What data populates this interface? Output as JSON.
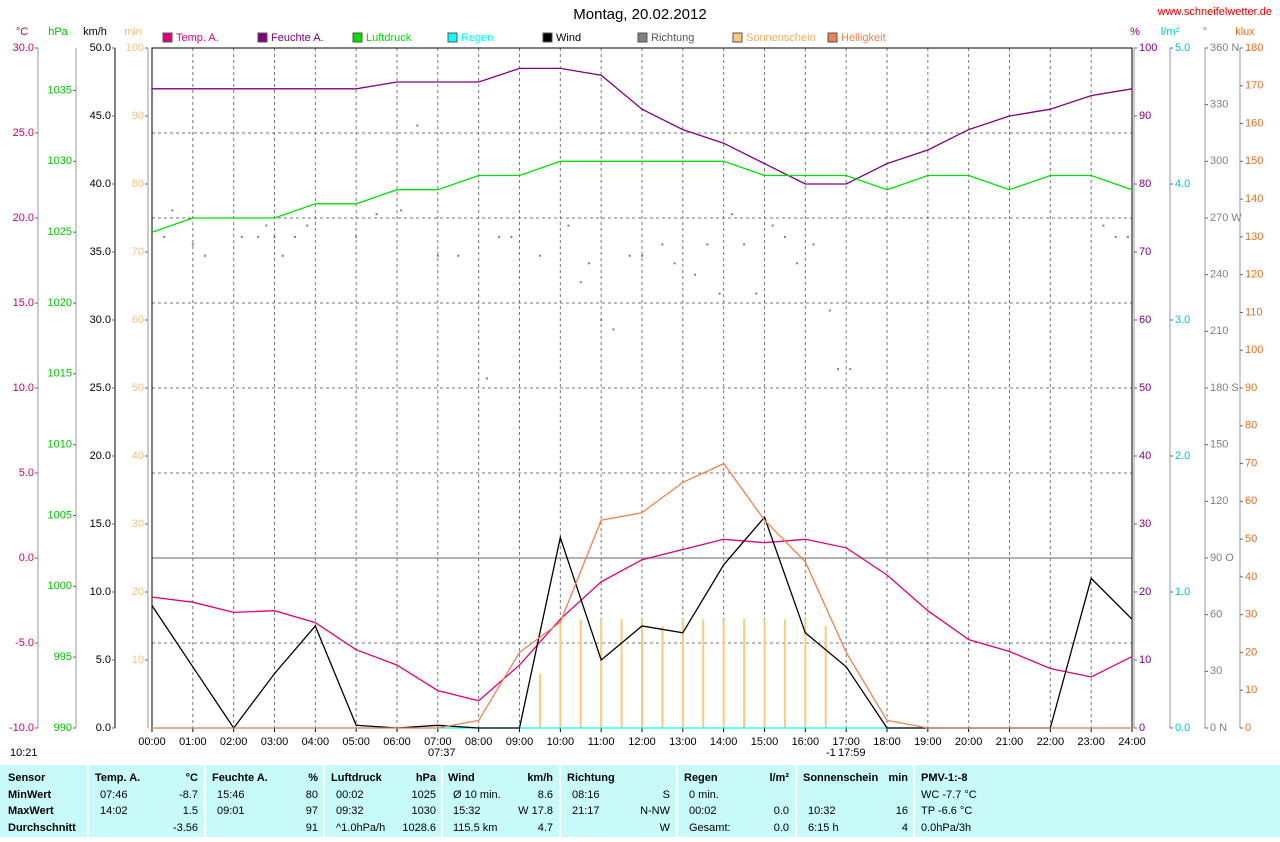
{
  "chart_data": {
    "type": "line",
    "title": "Montag, 20.02.2012",
    "source": "www.schneifelwetter.de",
    "xlim": [
      0,
      24
    ],
    "xticks": [
      {
        "value": 0,
        "label": "00:00"
      },
      {
        "value": 1,
        "label": "01:00"
      },
      {
        "value": 2,
        "label": "02:00"
      },
      {
        "value": 3,
        "label": "03:00"
      },
      {
        "value": 4,
        "label": "04:00"
      },
      {
        "value": 5,
        "label": "05:00"
      },
      {
        "value": 6,
        "label": "06:00"
      },
      {
        "value": 7,
        "label": "07:00"
      },
      {
        "value": 8,
        "label": "08:00"
      },
      {
        "value": 9,
        "label": "09:00"
      },
      {
        "value": 10,
        "label": "10:00"
      },
      {
        "value": 11,
        "label": "11:00"
      },
      {
        "value": 12,
        "label": "12:00"
      },
      {
        "value": 13,
        "label": "13:00"
      },
      {
        "value": 14,
        "label": "14:00"
      },
      {
        "value": 15,
        "label": "15:00"
      },
      {
        "value": 16,
        "label": "16:00"
      },
      {
        "value": 17,
        "label": "17:00"
      },
      {
        "value": 18,
        "label": "18:00"
      },
      {
        "value": 19,
        "label": "19:00"
      },
      {
        "value": 20,
        "label": "20:00"
      },
      {
        "value": 21,
        "label": "21:00"
      },
      {
        "value": 22,
        "label": "22:00"
      },
      {
        "value": 23,
        "label": "23:00"
      },
      {
        "value": 24,
        "label": "24:00"
      }
    ],
    "grid": true,
    "axes": [
      {
        "label": "°C",
        "color": "#d0006f",
        "lim": [
          -10,
          30
        ],
        "ticks": [
          {
            "value": -10,
            "label": "-10.0"
          },
          {
            "value": -5,
            "label": "-5.0"
          },
          {
            "value": 0,
            "label": "0.0"
          },
          {
            "value": 5,
            "label": "5.0"
          },
          {
            "value": 10,
            "label": "10.0"
          },
          {
            "value": 15,
            "label": "15.0"
          },
          {
            "value": 20,
            "label": "20.0"
          },
          {
            "value": 25,
            "label": "25.0"
          },
          {
            "value": 30,
            "label": "30.0"
          }
        ]
      },
      {
        "label": "hPa",
        "color": "#00c000",
        "lim": [
          990,
          1038
        ],
        "ticks": [
          990,
          995,
          1000,
          1005,
          1010,
          1015,
          1020,
          1025,
          1030,
          1035
        ]
      },
      {
        "label": "km/h",
        "color": "#000000",
        "lim": [
          0,
          50
        ],
        "ticks": [
          {
            "value": 0,
            "label": "0.0"
          },
          {
            "value": 5,
            "label": "5.0"
          },
          {
            "value": 10,
            "label": "10.0"
          },
          {
            "value": 15,
            "label": "15.0"
          },
          {
            "value": 20,
            "label": "20.0"
          },
          {
            "value": 25,
            "label": "25.0"
          },
          {
            "value": 30,
            "label": "30.0"
          },
          {
            "value": 35,
            "label": "35.0"
          },
          {
            "value": 40,
            "label": "40.0"
          },
          {
            "value": 45,
            "label": "45.0"
          },
          {
            "value": 50,
            "label": "50.0"
          }
        ]
      },
      {
        "label": "min",
        "color": "#f0c080",
        "lim": [
          0,
          100
        ],
        "ticks": [
          10,
          20,
          30,
          40,
          50,
          60,
          70,
          80,
          90,
          100
        ]
      },
      {
        "label": "%",
        "color": "#800080",
        "lim": [
          0,
          100
        ],
        "ticks": [
          0,
          10,
          20,
          30,
          40,
          50,
          60,
          70,
          80,
          90,
          100
        ]
      },
      {
        "label": "l/m²",
        "color": "#00c8c8",
        "lim": [
          0,
          5
        ],
        "ticks": [
          {
            "value": 0,
            "label": "0.0"
          },
          {
            "value": 1,
            "label": "1.0"
          },
          {
            "value": 2,
            "label": "2.0"
          },
          {
            "value": 3,
            "label": "3.0"
          },
          {
            "value": 4,
            "label": "4.0"
          },
          {
            "value": 5,
            "label": "5.0"
          }
        ]
      },
      {
        "label": "°",
        "color": "#808080",
        "lim": [
          0,
          360
        ],
        "ticks": [
          {
            "value": 0,
            "label": "0 N"
          },
          30,
          60,
          {
            "value": 90,
            "label": "90 O"
          },
          120,
          150,
          {
            "value": 180,
            "label": "180 S"
          },
          210,
          240,
          {
            "value": 270,
            "label": "270 W"
          },
          300,
          330,
          {
            "value": 360,
            "label": "360 N"
          }
        ]
      },
      {
        "label": "klux",
        "color": "#e07020",
        "lim": [
          0,
          180
        ],
        "ticks": [
          0,
          10,
          20,
          30,
          40,
          50,
          60,
          70,
          80,
          90,
          100,
          110,
          120,
          130,
          140,
          150,
          160,
          170,
          180
        ]
      }
    ],
    "x": [
      0,
      1,
      2,
      3,
      4,
      5,
      6,
      7,
      8,
      9,
      10,
      11,
      12,
      13,
      14,
      15,
      16,
      17,
      18,
      19,
      20,
      21,
      22,
      23,
      24
    ],
    "series": [
      {
        "name": "Temp. A.",
        "color": "#e0007a",
        "axis": 0,
        "type": "line",
        "values": [
          -2.3,
          -2.6,
          -3.2,
          -3.1,
          -3.8,
          -5.4,
          -6.3,
          -7.8,
          -8.4,
          -6.3,
          -3.6,
          -1.4,
          -0.1,
          0.5,
          1.1,
          0.9,
          1.1,
          0.6,
          -1.0,
          -3.1,
          -4.8,
          -5.5,
          -6.5,
          -7.0,
          -5.8
        ]
      },
      {
        "name": "Feuchte A.",
        "color": "#800080",
        "axis": 4,
        "type": "line",
        "values": [
          94,
          94,
          94,
          94,
          94,
          94,
          95,
          95,
          95,
          97,
          97,
          96,
          91,
          88,
          86,
          83,
          80,
          80,
          83,
          85,
          88,
          90,
          91,
          93,
          94
        ]
      },
      {
        "name": "Luftdruck",
        "color": "#00e000",
        "axis": 1,
        "type": "line",
        "values": [
          1025,
          1026,
          1026,
          1026,
          1027,
          1027,
          1028,
          1028,
          1029,
          1029,
          1030,
          1030,
          1030,
          1030,
          1030,
          1029,
          1029,
          1029,
          1028,
          1029,
          1029,
          1028,
          1029,
          1029,
          1028
        ]
      },
      {
        "name": "Regen",
        "color": "#00ffff",
        "axis": 5,
        "type": "line",
        "x": [
          0,
          24
        ],
        "values": [
          0,
          0
        ]
      },
      {
        "name": "Wind",
        "color": "#000000",
        "axis": 2,
        "type": "line",
        "values": [
          9,
          4.5,
          0,
          4,
          7.5,
          0.2,
          0,
          0.2,
          0,
          0,
          14,
          5,
          7.5,
          7,
          12,
          15.5,
          7,
          4.5,
          0,
          0,
          0,
          0,
          0,
          11,
          8
        ]
      },
      {
        "name": "Richtung",
        "color": "#808080",
        "axis": 6,
        "type": "scatter",
        "x": [
          0.3,
          0.5,
          1,
          1.3,
          2.2,
          2.6,
          2.8,
          3,
          3.2,
          3.5,
          3.8,
          5,
          5.5,
          6.1,
          6.5,
          7,
          7.5,
          8.2,
          8.5,
          8.8,
          9.5,
          10.2,
          10.5,
          10.7,
          11,
          11.3,
          11.7,
          12,
          12.5,
          12.8,
          13.3,
          13.6,
          13.9,
          14.2,
          14.5,
          14.8,
          15.2,
          15.5,
          15.8,
          16.2,
          16.6,
          16.8,
          17.1,
          23.3,
          23.6,
          23.9
        ],
        "values": [
          260,
          274,
          256,
          250,
          260,
          260,
          266,
          260,
          250,
          260,
          266,
          260,
          272,
          274,
          319,
          250,
          250,
          185,
          260,
          260,
          250,
          266,
          236,
          246,
          216,
          211,
          250,
          250,
          256,
          246,
          240,
          256,
          230,
          272,
          256,
          230,
          266,
          260,
          246,
          256,
          221,
          190,
          190,
          266,
          260,
          260
        ]
      },
      {
        "name": "Sonnenschein",
        "color": "#ffc880",
        "axis": 3,
        "type": "bar",
        "x": [
          9.5,
          10,
          10.5,
          11,
          11.5,
          12,
          12.5,
          13,
          13.5,
          14,
          14.5,
          15,
          15.5,
          16,
          16.5
        ],
        "values": [
          8,
          16,
          16,
          16,
          16,
          16,
          15,
          16,
          16,
          16,
          16,
          16,
          16,
          16,
          15
        ]
      },
      {
        "name": "Helligkeit",
        "color": "#f08050",
        "axis": 7,
        "type": "line",
        "values": [
          0,
          0,
          0,
          0,
          0,
          0,
          0,
          0,
          2,
          20,
          28,
          55,
          57,
          65,
          70,
          55,
          44,
          20,
          2,
          0,
          0,
          0,
          0,
          0,
          0
        ]
      }
    ],
    "annotations": [
      "10:21",
      "07:37",
      "-1",
      "17:59"
    ]
  },
  "table": {
    "row_labels": [
      "Sensor",
      "MinWert",
      "MaxWert",
      "Durchschnitt"
    ],
    "groups": [
      {
        "name": "Temp. A.",
        "unit": "°C",
        "rows": [
          [
            "07:46",
            "-8.7"
          ],
          [
            "14:02",
            "1.5"
          ],
          [
            null,
            "-3.56"
          ]
        ]
      },
      {
        "name": "Feuchte A.",
        "unit": "%",
        "rows": [
          [
            "15:46",
            "80"
          ],
          [
            "09:01",
            "97"
          ],
          [
            null,
            "91"
          ]
        ]
      },
      {
        "name": "Luftdruck",
        "unit": "hPa",
        "rows": [
          [
            "00:02",
            "1025"
          ],
          [
            "09:32",
            "1030"
          ],
          [
            "^1.0hPa/h",
            "1028.6"
          ]
        ]
      },
      {
        "name": "Wind",
        "unit": "km/h",
        "rows": [
          [
            "Ø 10 min.",
            "8.6"
          ],
          [
            "15:32",
            "W 17.8"
          ],
          [
            "115.5 km",
            "4.7"
          ]
        ]
      },
      {
        "name": "Richtung",
        "rows": [
          [
            "08:16",
            "S"
          ],
          [
            "21:17",
            "N-NW"
          ],
          [
            null,
            "W"
          ]
        ]
      },
      {
        "name": "Regen",
        "unit": "l/m²",
        "rows": [
          [
            "0 min.",
            null
          ],
          [
            "00:02",
            "0.0"
          ],
          [
            "Gesamt:",
            "0.0"
          ]
        ]
      },
      {
        "name": "Sonnenschein",
        "unit": "min",
        "rows": [
          [
            null,
            null
          ],
          [
            "10:32",
            "16"
          ],
          [
            "6:15 h",
            "4"
          ]
        ]
      },
      {
        "name": "PMV-1:-8",
        "rows": [
          [
            "WC -7.7 °C"
          ],
          [
            "TP -6.6 °C"
          ],
          [
            "0.0hPa/3h"
          ]
        ]
      }
    ]
  }
}
